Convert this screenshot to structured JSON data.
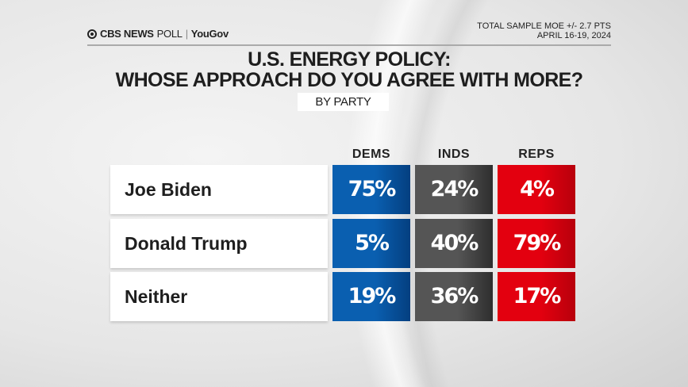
{
  "header": {
    "logo": "CBS NEWS POLL | YouGov",
    "logo_parts": [
      "CBS NEWS",
      "POLL",
      "|",
      "YouGov"
    ],
    "moe": "TOTAL SAMPLE MOE +/- 2.7 PTS",
    "dates": "APRIL 16-19, 2024"
  },
  "chart_data": {
    "type": "table",
    "title": "U.S. ENERGY POLICY:",
    "title_line2": "WHOSE APPROACH DO YOU AGREE WITH MORE?",
    "subtitle": "BY PARTY",
    "columns": [
      {
        "label": "DEMS",
        "color": "#0a5fb0"
      },
      {
        "label": "INDS",
        "color": "#555555"
      },
      {
        "label": "REPS",
        "color": "#e3000f"
      }
    ],
    "rows": [
      {
        "label": "Joe Biden",
        "values": [
          75,
          24,
          4
        ],
        "display": [
          "75%",
          "24%",
          "4%"
        ]
      },
      {
        "label": "Donald Trump",
        "values": [
          5,
          40,
          79
        ],
        "display": [
          "5%",
          "40%",
          "79%"
        ]
      },
      {
        "label": "Neither",
        "values": [
          19,
          36,
          17
        ],
        "display": [
          "19%",
          "36%",
          "17%"
        ]
      }
    ]
  }
}
